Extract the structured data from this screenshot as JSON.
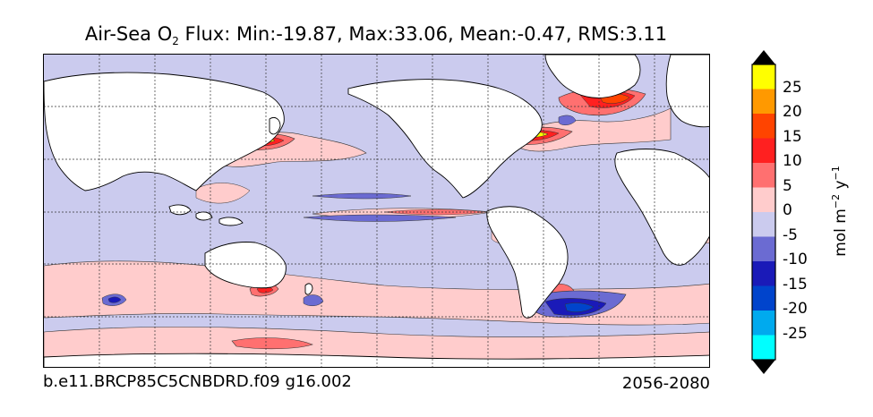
{
  "title": {
    "prefix": "Air-Sea O",
    "subscript": "2",
    "suffix": " Flux: Min:-19.87, Max:33.06, Mean:-0.47, RMS:3.11"
  },
  "run_label": "b.e11.BRCP85C5CNBDRD.f09 g16.002",
  "period_label": "2056-2080",
  "colorbar": {
    "units": {
      "base": "mol m",
      "exp1": "−2",
      "mid": " y",
      "exp2": "−1"
    },
    "levels": [
      {
        "range": [
          -30,
          -25
        ],
        "color": "#00ffff"
      },
      {
        "range": [
          -25,
          -20
        ],
        "color": "#00aaee"
      },
      {
        "range": [
          -20,
          -15
        ],
        "color": "#0044cc"
      },
      {
        "range": [
          -15,
          -10
        ],
        "color": "#1a1ab8"
      },
      {
        "range": [
          -10,
          -5
        ],
        "color": "#6b6bd2"
      },
      {
        "range": [
          -5,
          0
        ],
        "color": "#cbcbee"
      },
      {
        "range": [
          0,
          5
        ],
        "color": "#ffcccc"
      },
      {
        "range": [
          5,
          10
        ],
        "color": "#ff7070"
      },
      {
        "range": [
          10,
          15
        ],
        "color": "#ff2020"
      },
      {
        "range": [
          15,
          20
        ],
        "color": "#ff4400"
      },
      {
        "range": [
          20,
          25
        ],
        "color": "#ff9900"
      },
      {
        "range": [
          25,
          30
        ],
        "color": "#ffff00"
      }
    ],
    "ticks": [
      "25",
      "20",
      "15",
      "10",
      "5",
      "0",
      "-5",
      "-10",
      "-15",
      "-20",
      "-25"
    ],
    "extend_low_color": "#000000",
    "extend_high_color": "#000000"
  },
  "colors": {
    "land": "#ffffff",
    "ocean_default": "#cbcbee",
    "coast": "#000000"
  }
}
